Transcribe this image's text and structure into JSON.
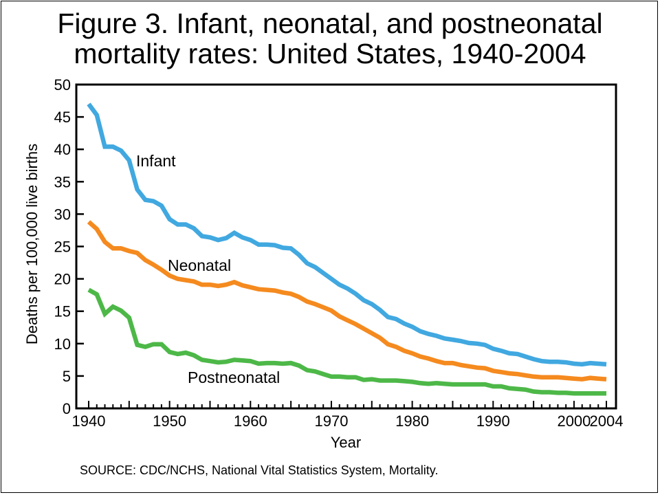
{
  "title_lines": [
    "Figure 3. Infant, neonatal, and postneonatal",
    "mortality rates: United States, 1940-2004"
  ],
  "source": "SOURCE: CDC/NCHS, National Vital Statistics System, Mortality.",
  "chart_data": {
    "type": "line",
    "title": "Figure 3. Infant, neonatal, and postneonatal mortality rates: United States, 1940-2004",
    "xlabel": "Year",
    "ylabel": "Deaths per 100,000 live births",
    "xlim": [
      1940,
      2004
    ],
    "ylim": [
      0,
      50
    ],
    "xticks": [
      1940,
      1950,
      1960,
      1970,
      1980,
      1990,
      2000,
      2004
    ],
    "yticks": [
      0,
      5,
      10,
      15,
      20,
      25,
      30,
      35,
      40,
      45,
      50
    ],
    "grid": false,
    "legend": "inline labels",
    "x": [
      1940,
      1941,
      1942,
      1943,
      1944,
      1945,
      1946,
      1947,
      1948,
      1949,
      1950,
      1951,
      1952,
      1953,
      1954,
      1955,
      1956,
      1957,
      1958,
      1959,
      1960,
      1961,
      1962,
      1963,
      1964,
      1965,
      1966,
      1967,
      1968,
      1969,
      1970,
      1971,
      1972,
      1973,
      1974,
      1975,
      1976,
      1977,
      1978,
      1979,
      1980,
      1981,
      1982,
      1983,
      1984,
      1985,
      1986,
      1987,
      1988,
      1989,
      1990,
      1991,
      1992,
      1993,
      1994,
      1995,
      1996,
      1997,
      1998,
      1999,
      2000,
      2001,
      2002,
      2003,
      2004
    ],
    "series": [
      {
        "name": "Infant",
        "color": "#41a8e0",
        "label_position": "near 1946-1951, y≈38",
        "values": [
          47.0,
          45.3,
          40.4,
          40.4,
          39.8,
          38.3,
          33.8,
          32.2,
          32.0,
          31.3,
          29.2,
          28.4,
          28.4,
          27.8,
          26.6,
          26.4,
          26.0,
          26.3,
          27.1,
          26.4,
          26.0,
          25.3,
          25.3,
          25.2,
          24.8,
          24.7,
          23.7,
          22.4,
          21.8,
          20.9,
          20.0,
          19.1,
          18.5,
          17.7,
          16.7,
          16.1,
          15.2,
          14.1,
          13.8,
          13.1,
          12.6,
          11.9,
          11.5,
          11.2,
          10.8,
          10.6,
          10.4,
          10.1,
          10.0,
          9.8,
          9.2,
          8.9,
          8.5,
          8.4,
          8.0,
          7.6,
          7.3,
          7.2,
          7.2,
          7.1,
          6.9,
          6.8,
          7.0,
          6.9,
          6.8
        ]
      },
      {
        "name": "Neonatal",
        "color": "#f58a1f",
        "label_position": "near 1950-1958, y≈22",
        "values": [
          28.8,
          27.7,
          25.7,
          24.7,
          24.7,
          24.3,
          24.0,
          22.9,
          22.2,
          21.4,
          20.5,
          20.0,
          19.8,
          19.6,
          19.1,
          19.1,
          18.9,
          19.1,
          19.5,
          19.0,
          18.7,
          18.4,
          18.3,
          18.2,
          17.9,
          17.7,
          17.2,
          16.5,
          16.1,
          15.6,
          15.1,
          14.2,
          13.6,
          13.0,
          12.3,
          11.6,
          10.9,
          9.9,
          9.5,
          8.9,
          8.5,
          8.0,
          7.7,
          7.3,
          7.0,
          7.0,
          6.7,
          6.5,
          6.3,
          6.2,
          5.8,
          5.6,
          5.4,
          5.3,
          5.1,
          4.9,
          4.8,
          4.8,
          4.8,
          4.7,
          4.6,
          4.5,
          4.7,
          4.6,
          4.5
        ]
      },
      {
        "name": "Postneonatal",
        "color": "#4db848",
        "label_position": "near 1955-1965, y≈5",
        "values": [
          18.3,
          17.6,
          14.6,
          15.7,
          15.1,
          14.0,
          9.8,
          9.5,
          9.9,
          9.9,
          8.7,
          8.4,
          8.6,
          8.2,
          7.5,
          7.3,
          7.1,
          7.2,
          7.5,
          7.4,
          7.3,
          6.9,
          7.0,
          7.0,
          6.9,
          7.0,
          6.6,
          5.9,
          5.7,
          5.3,
          4.9,
          4.9,
          4.8,
          4.8,
          4.4,
          4.5,
          4.3,
          4.3,
          4.3,
          4.2,
          4.1,
          3.9,
          3.8,
          3.9,
          3.8,
          3.7,
          3.7,
          3.7,
          3.7,
          3.7,
          3.4,
          3.4,
          3.1,
          3.0,
          2.9,
          2.6,
          2.5,
          2.5,
          2.4,
          2.4,
          2.3,
          2.3,
          2.3,
          2.3,
          2.3
        ]
      }
    ]
  }
}
